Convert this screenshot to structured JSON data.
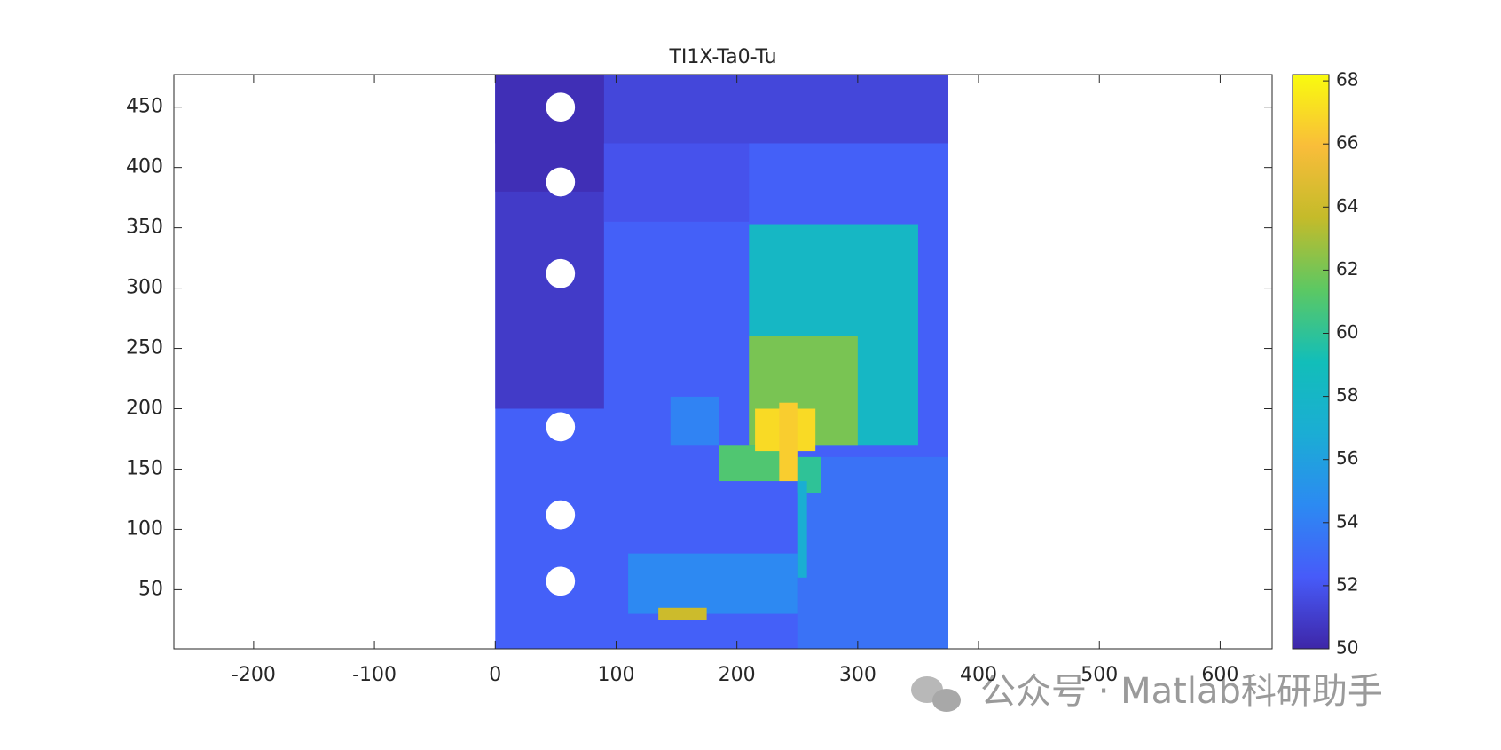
{
  "chart_data": {
    "type": "heatmap",
    "title": "TI1X-Ta0-Tu",
    "xlim": [
      -266,
      643
    ],
    "ylim": [
      1,
      477
    ],
    "xticks": [
      -200,
      -100,
      0,
      100,
      200,
      300,
      400,
      500,
      600
    ],
    "yticks": [
      50,
      100,
      150,
      200,
      250,
      300,
      350,
      400,
      450
    ],
    "colormap": "parula",
    "clim": [
      50,
      68.2
    ],
    "colorbar_ticks": [
      50,
      52,
      54,
      56,
      58,
      60,
      62,
      64,
      66,
      68
    ],
    "regions": [
      {
        "x": [
          0,
          375
        ],
        "y": [
          0,
          477
        ],
        "value": 52.5
      },
      {
        "x": [
          0,
          375
        ],
        "y": [
          420,
          477
        ],
        "value": 51.4
      },
      {
        "x": [
          0,
          90
        ],
        "y": [
          200,
          477
        ],
        "value": 50.9
      },
      {
        "x": [
          0,
          90
        ],
        "y": [
          380,
          477
        ],
        "value": 50.4
      },
      {
        "x": [
          90,
          210
        ],
        "y": [
          355,
          420
        ],
        "value": 51.9
      },
      {
        "x": [
          250,
          375
        ],
        "y": [
          0,
          160
        ],
        "value": 53.4
      },
      {
        "x": [
          110,
          250
        ],
        "y": [
          30,
          80
        ],
        "value": 54.5
      },
      {
        "x": [
          145,
          185
        ],
        "y": [
          170,
          210
        ],
        "value": 54.2
      },
      {
        "x": [
          210,
          350
        ],
        "y": [
          170,
          353
        ],
        "value": 58.2
      },
      {
        "x": [
          210,
          300
        ],
        "y": [
          170,
          260
        ],
        "value": 62
      },
      {
        "x": [
          185,
          250
        ],
        "y": [
          140,
          170
        ],
        "value": 61
      },
      {
        "x": [
          250,
          270
        ],
        "y": [
          130,
          160
        ],
        "value": 60
      },
      {
        "x": [
          250,
          258
        ],
        "y": [
          60,
          140
        ],
        "value": 57
      },
      {
        "x": [
          215,
          265
        ],
        "y": [
          165,
          200
        ],
        "value": 67
      },
      {
        "x": [
          235,
          250
        ],
        "y": [
          140,
          205
        ],
        "value": 66.5
      },
      {
        "x": [
          135,
          175
        ],
        "y": [
          25,
          35
        ],
        "value": 64
      }
    ],
    "holes": {
      "x": [
        54,
        54,
        54,
        54,
        54,
        54
      ],
      "y": [
        450,
        388,
        312,
        185,
        112,
        57
      ],
      "r": 12
    },
    "watermark": "公众号 · Matlab科研助手"
  }
}
